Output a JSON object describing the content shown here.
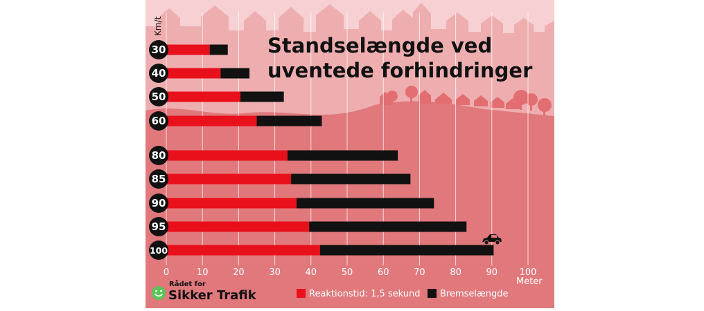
{
  "chart_data": {
    "type": "bar",
    "stacked": true,
    "orientation": "horizontal",
    "title": "Standselængde ved uventede forhindringer",
    "title_lines": [
      "Standselængde ved",
      "uventede forhindringer"
    ],
    "ylabel": "Km/t",
    "xlabel": "Meter",
    "xlim": [
      0,
      100
    ],
    "xticks": [
      0,
      10,
      20,
      30,
      40,
      50,
      60,
      70,
      80,
      90,
      100
    ],
    "grid": true,
    "categories": [
      "30",
      "40",
      "50",
      "60",
      "80",
      "85",
      "90",
      "95",
      "100"
    ],
    "series": [
      {
        "name": "Reaktionstid: 1,5 sekund",
        "values": [
          12,
          15,
          20.5,
          25,
          33.5,
          34.5,
          36,
          39.5,
          42.5
        ]
      },
      {
        "name": "Bremselængde",
        "values": [
          5,
          8,
          12,
          18,
          30.5,
          33,
          38,
          43.5,
          48
        ]
      }
    ],
    "legend_position": "bottom"
  },
  "brand": {
    "line1": "Rådet for",
    "line2": "Sikker Trafik"
  },
  "colors": {
    "reaction": "#e8101a",
    "braking": "#111111",
    "sky": "#f6d0d2",
    "skyline": "#eeaeb0",
    "ground": "#e0787c",
    "badge": "#111111",
    "logo": "#5bc35a"
  },
  "icons": {
    "car": "car-icon",
    "logo": "smiley-logo-icon"
  }
}
